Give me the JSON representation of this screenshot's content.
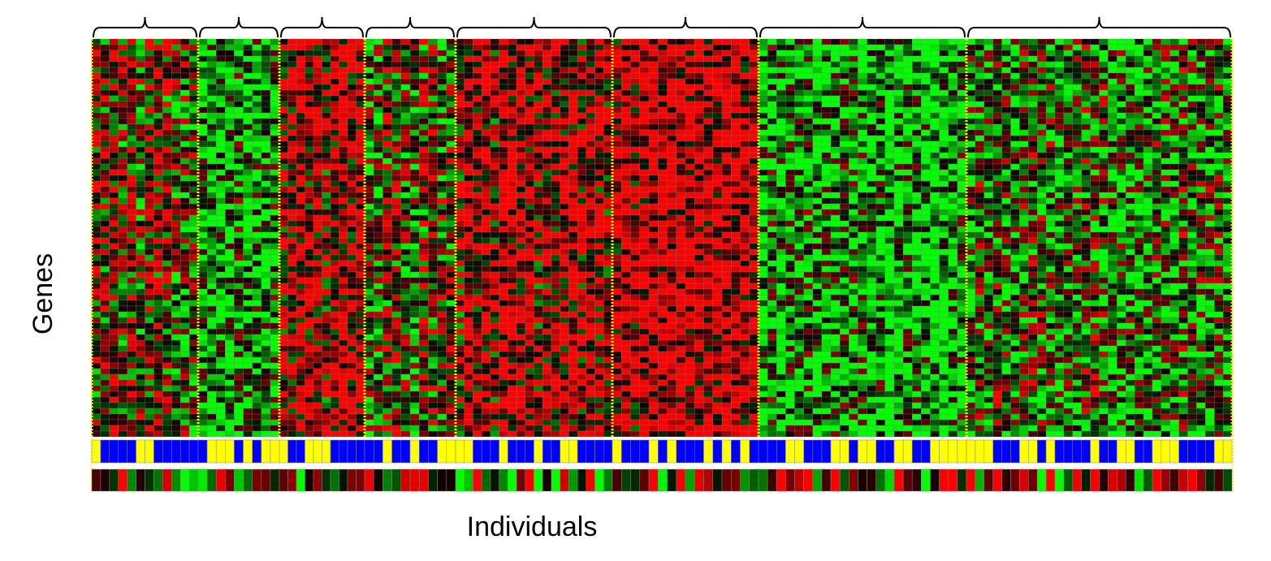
{
  "y_label": "Genes",
  "x_label": "Individuals"
}
